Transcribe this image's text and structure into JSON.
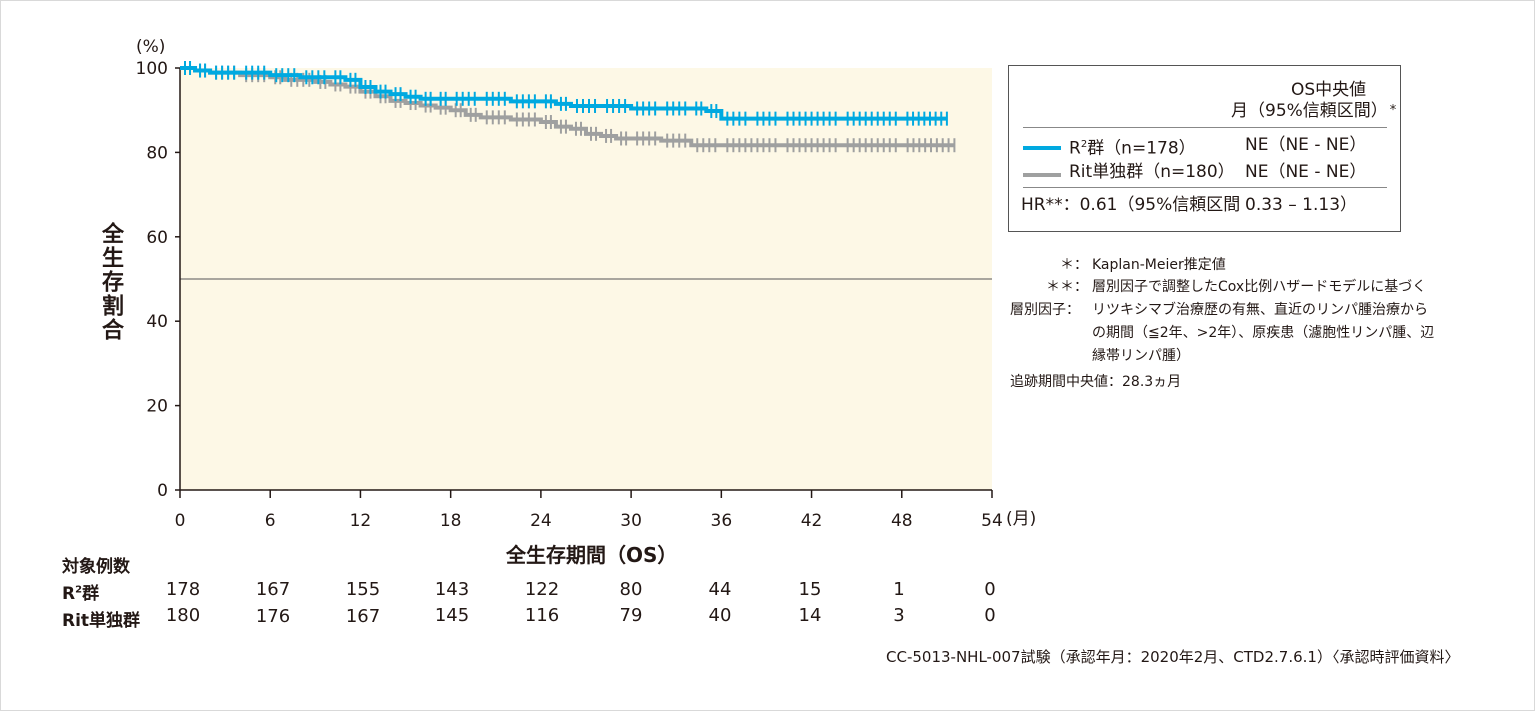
{
  "chart_data": {
    "type": "line",
    "y_unit": "(%)",
    "x_unit": "(月)",
    "ylabel": "全生存割合",
    "xlabel": "全生存期間（OS）",
    "xlim": [
      0,
      54
    ],
    "ylim": [
      0,
      100
    ],
    "x_ticks": [
      "0",
      "6",
      "12",
      "18",
      "24",
      "30",
      "36",
      "42",
      "48",
      "54"
    ],
    "y_ticks": [
      "0",
      "20",
      "40",
      "60",
      "80",
      "100"
    ],
    "reference_line_y": 50,
    "series": [
      {
        "name": "R²群（n=178）",
        "color": "#00a9e0",
        "x": [
          0,
          1,
          2,
          4,
          6,
          8,
          10,
          11,
          12,
          13,
          14,
          15,
          16,
          17,
          18,
          20,
          22,
          24,
          25,
          26,
          28,
          30,
          32,
          34,
          35,
          36,
          38,
          40,
          44,
          48,
          51
        ],
        "y": [
          100,
          99.4,
          98.9,
          98.9,
          98.3,
          97.8,
          97.8,
          97.2,
          95.5,
          94.4,
          93.8,
          93.2,
          92.7,
          92.7,
          92.7,
          92.7,
          92.1,
          92.1,
          91.5,
          91.0,
          91.0,
          90.4,
          90.4,
          90.4,
          89.8,
          88.0,
          88.0,
          88.0,
          88.0,
          88.0,
          88.0
        ]
      },
      {
        "name": "Rit単独群（n=180）",
        "color": "#9fa0a0",
        "x": [
          0,
          1,
          2,
          4,
          6,
          7,
          9,
          10,
          11,
          12,
          13,
          14,
          15,
          16,
          17,
          18,
          19,
          20,
          22,
          24,
          25,
          26,
          27,
          28,
          29,
          30,
          32,
          34,
          36,
          40,
          44,
          48,
          51.5
        ],
        "y": [
          100,
          99.4,
          98.9,
          98.3,
          97.8,
          97.2,
          96.7,
          96.1,
          95.6,
          94.4,
          93.3,
          92.2,
          91.7,
          91.1,
          90.6,
          90.0,
          88.9,
          88.3,
          87.8,
          87.2,
          86.1,
          85.6,
          84.4,
          83.9,
          83.3,
          83.3,
          82.8,
          81.7,
          81.7,
          81.7,
          81.7,
          81.7,
          81.7
        ]
      }
    ]
  },
  "legend": {
    "header1": "OS中央値",
    "header2": "月（95%信頼区間）",
    "header_mark": "*",
    "rows": [
      {
        "name_main": "R",
        "name_sup": "2",
        "name_rest": "群（n=178）",
        "value": "NE（NE - NE）",
        "color": "#00a9e0"
      },
      {
        "name_main": "Rit単独群（n=180）",
        "name_sup": "",
        "name_rest": "",
        "value": "NE（NE - NE）",
        "color": "#9fa0a0"
      }
    ],
    "hr_label": "HR**：0.61（95%信頼区間",
    "hr_value": "0.33 – 1.13）"
  },
  "notes": [
    {
      "mark": "＊：",
      "text": "Kaplan-Meier推定値"
    },
    {
      "mark": "＊＊：",
      "text": "層別因子で調整したCox比例ハザードモデルに基づく"
    },
    {
      "mark": "層別因子：",
      "text": "リツキシマブ治療歴の有無、直近のリンパ腫治療から"
    },
    {
      "mark": "",
      "text": "の期間（≦2年、>2年）、原疾患（濾胞性リンパ腫、辺"
    },
    {
      "mark": "",
      "text": "縁帯リンパ腫）"
    },
    {
      "mark": "",
      "text": "追跡期間中央値：28.3ヵ月"
    }
  ],
  "risk_table": {
    "title": "対象例数",
    "rows": [
      {
        "label_main": "R",
        "label_sup": "2",
        "label_rest": "群",
        "values": [
          "178",
          "167",
          "155",
          "143",
          "122",
          "80",
          "44",
          "15",
          "1",
          "0"
        ]
      },
      {
        "label_main": "Rit単独群",
        "label_sup": "",
        "label_rest": "",
        "values": [
          "180",
          "176",
          "167",
          "145",
          "116",
          "79",
          "40",
          "14",
          "3",
          "0"
        ]
      }
    ]
  },
  "source": "CC-5013-NHL-007試験（承認年月：2020年2月、CTD2.7.6.1）〈承認時評価資料〉"
}
